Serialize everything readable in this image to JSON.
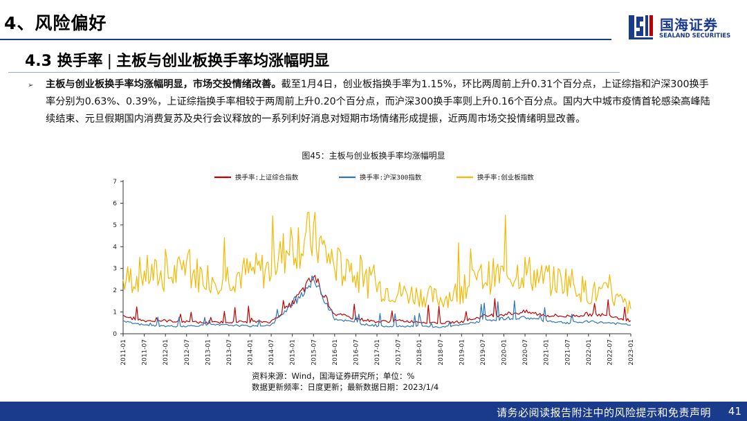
{
  "header": {
    "section_title": "4、风险偏好",
    "logo_cn": "国海证券",
    "logo_en": "SEALAND SECURITIES"
  },
  "subtitle": {
    "number": "4.3 换手率",
    "bar": "|",
    "title": "主板与创业板换手率均涨幅明显"
  },
  "paragraph": {
    "bold": "主板与创业板换手率均涨幅明显，市场交投情绪改善。",
    "text": "截至1月4日，创业板指换手率为1.15%，环比两周前上升0.31个百分点，上证综指和沪深300换手率分别为0.63%、0.39%，上证综指换手率相较于两周前上升0.20个百分点，而沪深300换手率则上升0.16个百分点。国内大中城市疫情首轮感染高峰陆续结束、元旦假期国内消费复苏及央行会议释放的一系列利好消息对短期市场情绪形成提振，近两周市场交投情绪明显改善。"
  },
  "figure_title": "图45：主板与创业板换手率均涨幅明显",
  "source": {
    "line1": "资料来源：Wind，国海证券研究所；单位：%",
    "line2": "数据更新频率：日度更新；最新数据日期：2023/1/4"
  },
  "footer": {
    "disclaimer": "请务必阅读报告附注中的风险提示和免责声明",
    "page": "41"
  },
  "colors": {
    "brand": "#1a3a8c",
    "sse": "#c00000",
    "hs300": "#2e75b6",
    "gem": "#f5b800"
  },
  "chart_data": {
    "type": "line",
    "title": "",
    "xlabel": "",
    "ylabel": "",
    "ylim": [
      0,
      7
    ],
    "yticks": [
      "0",
      "1",
      "2",
      "3",
      "4",
      "5",
      "6",
      "7"
    ],
    "legend_position": "top",
    "x": [
      "2011-01",
      "2011-07",
      "2012-01",
      "2012-07",
      "2013-01",
      "2013-07",
      "2014-01",
      "2014-07",
      "2015-01",
      "2015-07",
      "2016-01",
      "2016-07",
      "2017-01",
      "2017-07",
      "2018-01",
      "2018-07",
      "2019-01",
      "2019-07",
      "2020-01",
      "2020-07",
      "2021-01",
      "2021-07",
      "2022-01",
      "2022-07",
      "2023-01"
    ],
    "series": [
      {
        "name": "换手率:上证综合指数",
        "color": "#c00000",
        "values": [
          0.8,
          0.6,
          0.6,
          0.55,
          0.5,
          0.55,
          0.55,
          0.55,
          1.4,
          2.6,
          0.9,
          0.7,
          0.55,
          0.6,
          0.55,
          0.5,
          0.55,
          0.8,
          0.9,
          1.0,
          0.85,
          0.8,
          0.9,
          0.85,
          0.6
        ]
      },
      {
        "name": "换手率:沪深300指数",
        "color": "#2e75b6",
        "values": [
          0.55,
          0.4,
          0.35,
          0.35,
          0.4,
          0.4,
          0.35,
          0.4,
          1.3,
          2.5,
          0.7,
          0.5,
          0.35,
          0.35,
          0.35,
          0.3,
          0.4,
          0.6,
          0.7,
          0.75,
          0.6,
          0.5,
          0.55,
          0.5,
          0.4
        ]
      },
      {
        "name": "换手率:创业板指数",
        "color": "#f5b800",
        "values": [
          2.4,
          2.8,
          2.6,
          2.9,
          2.6,
          2.7,
          2.8,
          3.0,
          4.2,
          4.4,
          3.2,
          2.6,
          2.2,
          1.9,
          1.8,
          1.6,
          2.0,
          2.6,
          2.7,
          2.9,
          2.4,
          2.5,
          1.9,
          1.8,
          1.15
        ]
      }
    ]
  }
}
